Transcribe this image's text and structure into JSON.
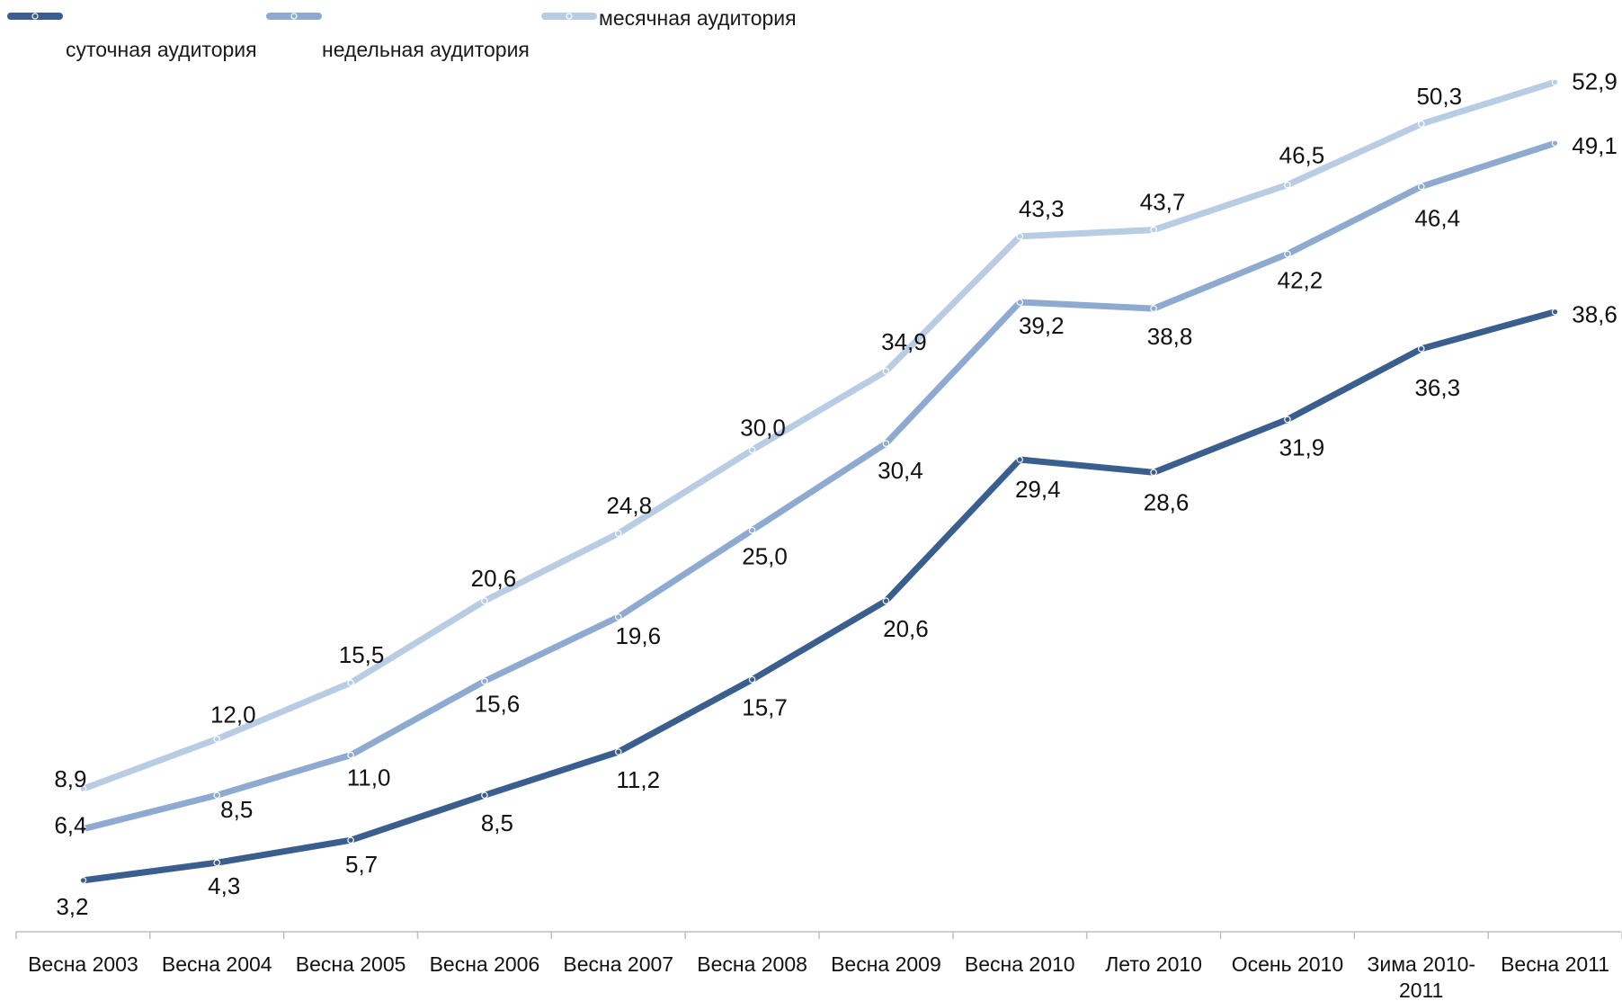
{
  "chart_data": {
    "type": "line",
    "title": "",
    "xlabel": "",
    "ylabel": "",
    "ylim": [
      0,
      56
    ],
    "grid": false,
    "legend_position": "top-left",
    "categories": [
      [
        "Весна 2003"
      ],
      [
        "Весна 2004"
      ],
      [
        "Весна 2005"
      ],
      [
        "Весна 2006"
      ],
      [
        "Весна 2007"
      ],
      [
        "Весна 2008"
      ],
      [
        "Весна 2009"
      ],
      [
        "Весна 2010"
      ],
      [
        "Лето 2010"
      ],
      [
        "Осень 2010"
      ],
      [
        "Зима 2010-",
        "2011"
      ],
      [
        "Весна 2011"
      ]
    ],
    "series": [
      {
        "name": "суточная аудитория",
        "color": "#3a5f8e",
        "values": [
          3.2,
          4.3,
          5.7,
          8.5,
          11.2,
          15.7,
          20.6,
          29.4,
          28.6,
          31.9,
          36.3,
          38.6
        ],
        "labels": [
          "3,2",
          "4,3",
          "5,7",
          "8,5",
          "11,2",
          "15,7",
          "20,6",
          "29,4",
          "28,6",
          "31,9",
          "36,3",
          "38,6"
        ]
      },
      {
        "name": "недельная аудитория",
        "color": "#8eaad0",
        "values": [
          6.4,
          8.5,
          11.0,
          15.6,
          19.6,
          25.0,
          30.4,
          39.2,
          38.8,
          42.2,
          46.4,
          49.1
        ],
        "labels": [
          "6,4",
          "8,5",
          "11,0",
          "15,6",
          "19,6",
          "25,0",
          "30,4",
          "39,2",
          "38,8",
          "42,2",
          "46,4",
          "49,1"
        ]
      },
      {
        "name": "месячная аудитория",
        "color": "#b8cce4",
        "values": [
          8.9,
          12.0,
          15.5,
          20.6,
          24.8,
          30.0,
          34.9,
          43.3,
          43.7,
          46.5,
          50.3,
          52.9
        ],
        "labels": [
          "8,9",
          "12,0",
          "15,5",
          "20,6",
          "24,8",
          "30,0",
          "34,9",
          "43,3",
          "43,7",
          "46,5",
          "50,3",
          "52,9"
        ]
      }
    ]
  }
}
